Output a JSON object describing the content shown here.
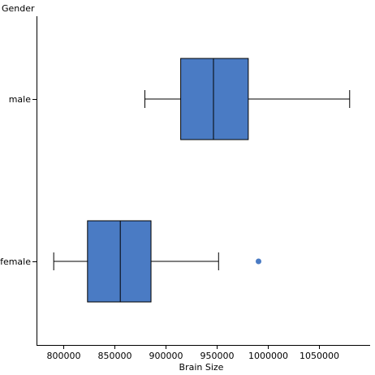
{
  "chart_data": {
    "type": "boxplot",
    "orientation": "horizontal",
    "xlabel": "Brain Size",
    "ylabel": "Gender",
    "xlim": [
      775000,
      1100000
    ],
    "xticks": [
      800000,
      850000,
      900000,
      950000,
      1000000,
      1050000
    ],
    "xtick_labels": [
      "800000",
      "850000",
      "900000",
      "950000",
      "1000000",
      "1050000"
    ],
    "grid": false,
    "box_color": "#4a7bc4",
    "categories": [
      "male",
      "female"
    ],
    "boxes": [
      {
        "category": "male",
        "whisker_low": 880000,
        "q1": 915000,
        "median": 947000,
        "q3": 981000,
        "whisker_high": 1080000,
        "outliers": []
      },
      {
        "category": "female",
        "whisker_low": 791000,
        "q1": 824000,
        "median": 856000,
        "q3": 886000,
        "whisker_high": 952000,
        "outliers": [
          991000
        ]
      }
    ]
  }
}
